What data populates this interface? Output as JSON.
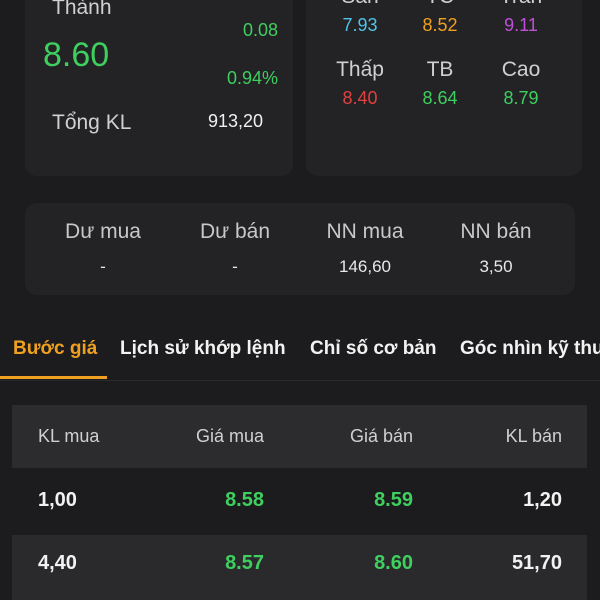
{
  "price_card": {
    "title": "Thành",
    "price": "8.60",
    "change": "0.08",
    "change_pct": "0.94%",
    "volume_label": "Tổng KL",
    "volume_value": "913,20"
  },
  "ref_card": {
    "top_row": [
      {
        "label": "Sàn",
        "value": "7.93",
        "color": "#4fc3e8"
      },
      {
        "label": "TC",
        "value": "8.52",
        "color": "#f0a020"
      },
      {
        "label": "Trần",
        "value": "9.11",
        "color": "#c04fd8"
      }
    ],
    "bottom_row": [
      {
        "label": "Thấp",
        "value": "8.40",
        "color": "#e04040"
      },
      {
        "label": "TB",
        "value": "8.64",
        "color": "#3ecf5f"
      },
      {
        "label": "Cao",
        "value": "8.79",
        "color": "#3ecf5f"
      }
    ]
  },
  "orders_card": [
    {
      "label": "Dư mua",
      "value": "-"
    },
    {
      "label": "Dư bán",
      "value": "-"
    },
    {
      "label": "NN mua",
      "value": "146,60"
    },
    {
      "label": "NN bán",
      "value": "3,50"
    }
  ],
  "tabs": [
    {
      "label": "Bước giá",
      "active": true
    },
    {
      "label": "Lịch sử khớp lệnh",
      "active": false
    },
    {
      "label": "Chỉ số cơ bản",
      "active": false
    },
    {
      "label": "Góc nhìn kỹ thu",
      "active": false
    }
  ],
  "table": {
    "headers": [
      "KL mua",
      "Giá mua",
      "Giá bán",
      "KL bán"
    ],
    "rows": [
      [
        "1,00",
        "8.58",
        "8.59",
        "1,20"
      ],
      [
        "4,40",
        "8.57",
        "8.60",
        "51,70"
      ]
    ]
  },
  "colors": {
    "accent": "#f0a020",
    "up": "#3ecf5f",
    "down": "#e04040",
    "floor": "#4fc3e8",
    "ceiling": "#c04fd8"
  }
}
